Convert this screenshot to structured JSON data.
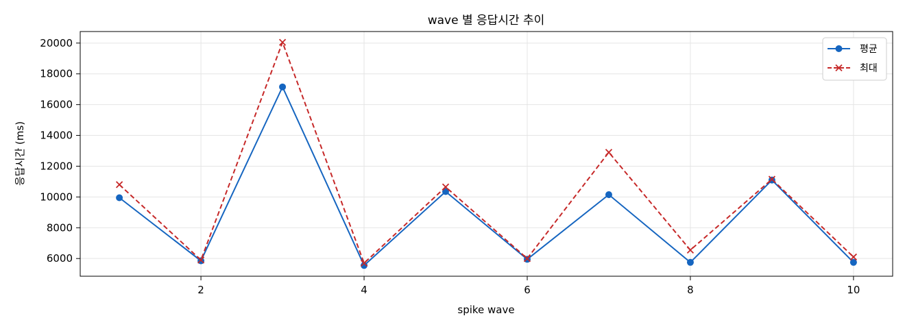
{
  "chart_data": {
    "type": "line",
    "title": "wave 별 응답시간 추이",
    "xlabel": "spike wave",
    "ylabel": "응답시간 (ms)",
    "xlim": [
      0.52,
      10.48
    ],
    "ylim": [
      4850,
      20750
    ],
    "xticks": [
      2,
      4,
      6,
      8,
      10
    ],
    "yticks": [
      6000,
      8000,
      10000,
      12000,
      14000,
      16000,
      18000,
      20000
    ],
    "grid": true,
    "legend_position": "top-right",
    "x": [
      1,
      2,
      3,
      4,
      5,
      6,
      7,
      8,
      9,
      10
    ],
    "series": [
      {
        "name": "평균",
        "color": "#1565c0",
        "line_style": "solid",
        "marker": "circle",
        "values": [
          9950,
          5850,
          17150,
          5550,
          10350,
          5950,
          10150,
          5750,
          11100,
          5750
        ]
      },
      {
        "name": "최대",
        "color": "#c62828",
        "line_style": "dashed",
        "marker": "x",
        "values": [
          10800,
          5900,
          20050,
          5700,
          10650,
          6000,
          12900,
          6550,
          11150,
          6100
        ]
      }
    ]
  }
}
